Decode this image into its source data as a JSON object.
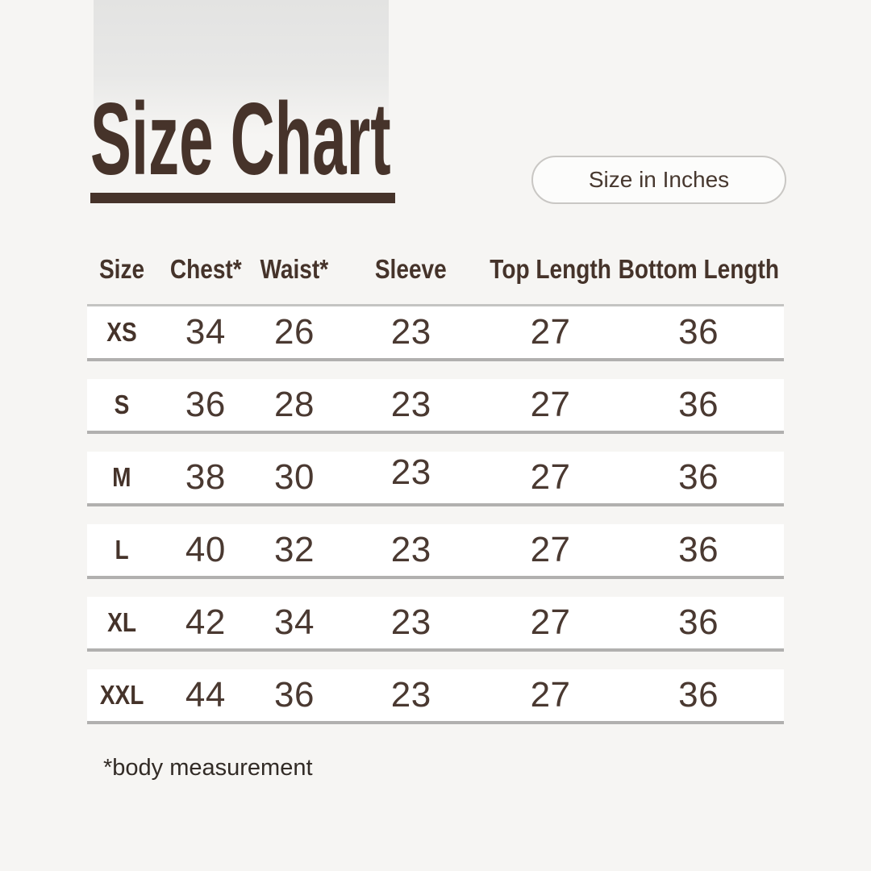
{
  "colors": {
    "background": "#f6f5f3",
    "accent_brown": "#46332a",
    "row_white": "#ffffff",
    "row_divider": "#b1b0af",
    "header_divider": "#c4c4c2",
    "pill_border": "#c9c7c4"
  },
  "header": {
    "title": "Size Chart",
    "unit_badge_label": "Size in Inches"
  },
  "footnote": "*body measurement",
  "chart_data": {
    "type": "table",
    "title": "Size Chart",
    "units": "inches",
    "columns": [
      "Size",
      "Chest*",
      "Waist*",
      "Sleeve",
      "Top Length",
      "Bottom Length"
    ],
    "rows": [
      [
        "XS",
        34,
        26,
        23,
        27,
        36
      ],
      [
        "S",
        36,
        28,
        23,
        27,
        36
      ],
      [
        "M",
        38,
        30,
        23,
        27,
        36
      ],
      [
        "L",
        40,
        32,
        23,
        27,
        36
      ],
      [
        "XL",
        42,
        34,
        23,
        27,
        36
      ],
      [
        "XXL",
        44,
        36,
        23,
        27,
        36
      ]
    ],
    "footnote": "*body measurement"
  }
}
